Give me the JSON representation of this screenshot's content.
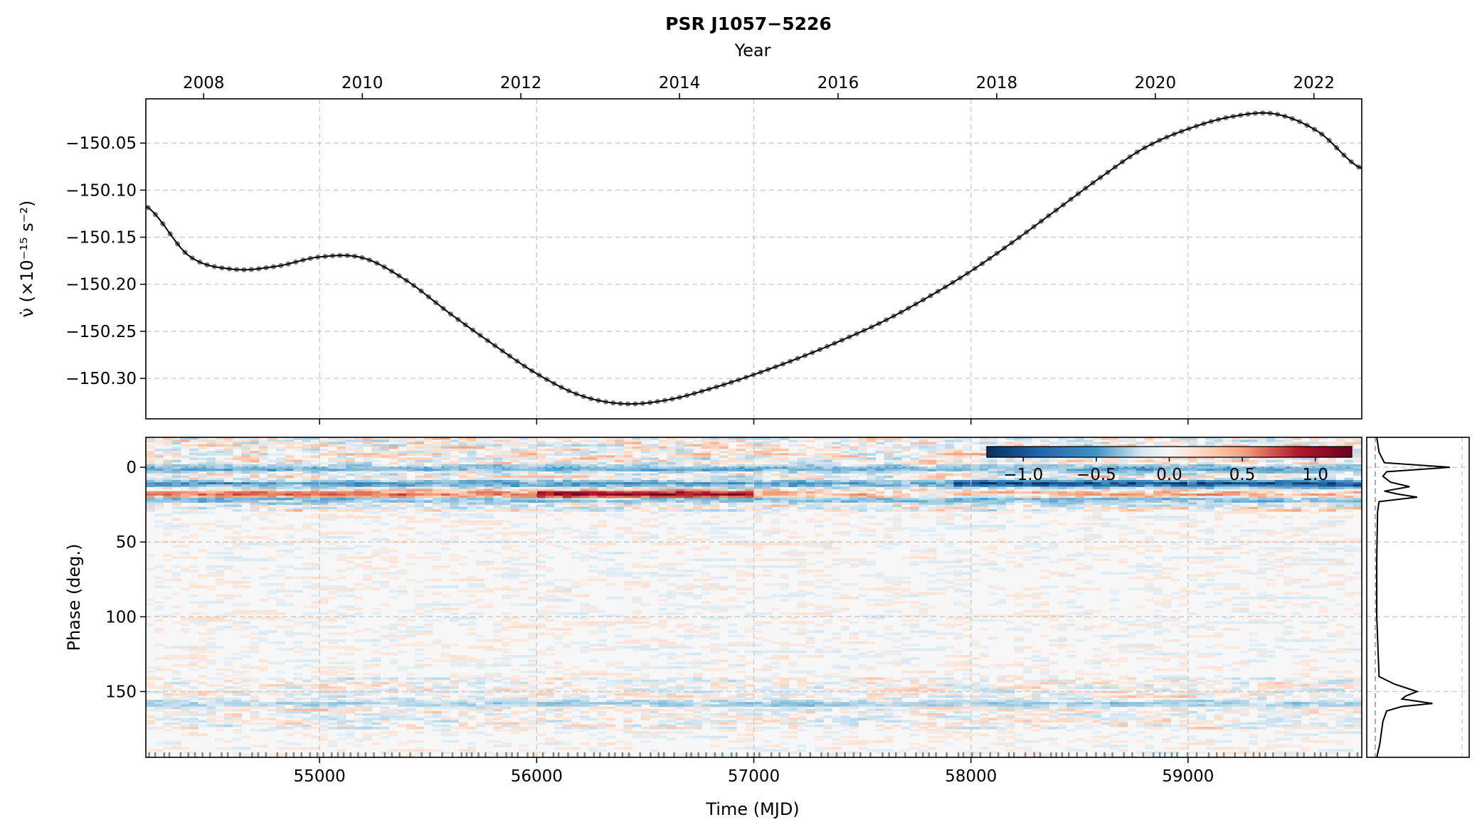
{
  "chart_data": [
    {
      "type": "line",
      "title": "PSR J1057−5226",
      "top_axis_label": "Year",
      "top_axis_ticks": [
        "2008",
        "2010",
        "2012",
        "2014",
        "2016",
        "2018",
        "2020",
        "2022"
      ],
      "ylabel": "ν̇ (×10⁻¹⁵ s⁻²)",
      "yticks": [
        "−150.05",
        "−150.10",
        "−150.15",
        "−150.20",
        "−150.25",
        "−150.30"
      ],
      "xlim": [
        54200,
        59800
      ],
      "ylim": [
        -150.343,
        -150.003
      ],
      "grid": true,
      "series": [
        {
          "style": "black line with grey dots",
          "x": [
            54200,
            54400,
            54600,
            54800,
            55000,
            55200,
            55400,
            55600,
            55800,
            56000,
            56200,
            56400,
            56600,
            56800,
            57000,
            57200,
            57400,
            57600,
            57800,
            58000,
            58200,
            58400,
            58600,
            58800,
            59000,
            59200,
            59400,
            59600,
            59800
          ],
          "y": [
            -150.117,
            -150.17,
            -150.184,
            -150.181,
            -150.171,
            -150.172,
            -150.196,
            -150.231,
            -150.264,
            -150.295,
            -150.318,
            -150.327,
            -150.323,
            -150.311,
            -150.296,
            -150.279,
            -150.26,
            -150.239,
            -150.214,
            -150.186,
            -150.154,
            -150.12,
            -150.086,
            -150.055,
            -150.035,
            -150.022,
            -150.019,
            -150.038,
            -150.077
          ]
        }
      ]
    },
    {
      "type": "heatmap",
      "xlabel": "Time (MJD)",
      "ylabel": "Phase (deg.)",
      "xticks": [
        "55000",
        "56000",
        "57000",
        "58000",
        "59000"
      ],
      "yticks": [
        "0",
        "50",
        "100",
        "150"
      ],
      "xlim": [
        54200,
        59800
      ],
      "ylim": [
        194,
        -20
      ],
      "colormap": "RdBu_r",
      "colorbar": {
        "ticks": [
          "−1.0",
          "−0.5",
          "0.0",
          "0.5",
          "1.0"
        ],
        "range": [
          -1.25,
          1.25
        ],
        "placement": "top-right"
      },
      "bands": [
        {
          "phase": 1,
          "value": -0.4
        },
        {
          "phase": 11,
          "value": -0.7
        },
        {
          "phase": 18,
          "value": 0.8
        },
        {
          "phase": 22,
          "value": -0.3
        },
        {
          "phase": 158,
          "value": -0.2
        }
      ]
    },
    {
      "type": "line",
      "description": "side profile",
      "phase": [
        -20,
        -10,
        -3,
        0,
        3,
        6,
        10,
        13,
        16,
        18,
        20,
        23,
        30,
        60,
        100,
        140,
        145,
        150,
        153,
        155,
        158,
        160,
        163,
        170,
        185,
        194
      ],
      "intensity": [
        0.02,
        0.05,
        0.12,
        0.98,
        0.15,
        0.1,
        0.2,
        0.45,
        0.12,
        0.3,
        0.55,
        0.05,
        0.03,
        0.02,
        0.02,
        0.05,
        0.25,
        0.55,
        0.4,
        0.35,
        0.75,
        0.35,
        0.15,
        0.1,
        0.06,
        0.02
      ]
    }
  ]
}
